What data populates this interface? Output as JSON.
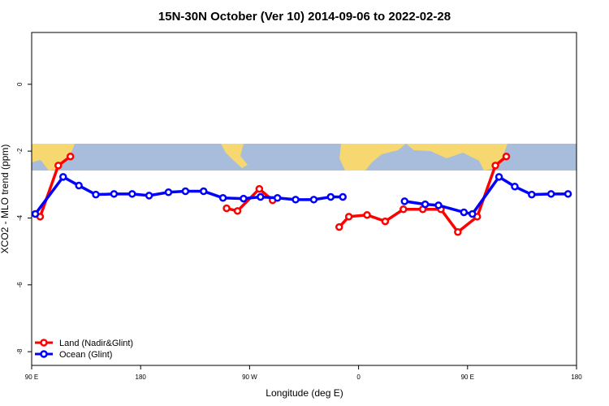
{
  "chart_data": {
    "type": "line",
    "title": "15N-30N October (Ver 10)   2014-09-06 to 2022-02-28",
    "x_label": "Longitude (deg E)",
    "y_label": "XCO2 - MLO trend (ppm)",
    "xlim": [
      90,
      540
    ],
    "xticks": [
      {
        "value": 90,
        "label": "90 E"
      },
      {
        "value": 180,
        "label": "180"
      },
      {
        "value": 270,
        "label": "90 W"
      },
      {
        "value": 360,
        "label": "0"
      },
      {
        "value": 450,
        "label": "90 E"
      },
      {
        "value": 540,
        "label": "180"
      }
    ],
    "ylim": [
      -8.41,
      1.55
    ],
    "yticks": [
      0,
      -2,
      -4,
      -6,
      -8
    ],
    "legend": "bottom-left",
    "series": [
      {
        "name": "Land (Nadir&Glint)",
        "color": "#ff0000",
        "x": [
          97,
          112,
          122,
          186,
          251,
          260,
          278,
          289,
          317,
          344,
          352,
          367,
          382,
          397,
          413,
          428,
          442,
          458,
          473,
          482
        ],
        "values": [
          -3.96,
          -2.43,
          -2.16,
          null,
          -3.71,
          -3.79,
          -3.13,
          -3.47,
          null,
          -4.27,
          -3.96,
          -3.91,
          -4.1,
          -3.74,
          -3.74,
          -3.74,
          -4.42,
          -3.96,
          -2.43,
          -2.16
        ]
      },
      {
        "name": "Ocean (Glint)",
        "color": "#0000ff",
        "x": [
          93,
          116,
          129,
          143,
          158,
          173,
          187,
          203,
          217,
          232,
          248,
          265,
          279,
          293,
          308,
          323,
          337,
          347,
          372,
          398,
          415,
          426,
          447,
          454,
          476,
          489,
          503,
          519,
          533
        ],
        "values": [
          -3.88,
          -2.77,
          -3.03,
          -3.3,
          -3.28,
          -3.28,
          -3.33,
          -3.23,
          -3.2,
          -3.2,
          -3.4,
          -3.42,
          -3.37,
          -3.4,
          -3.45,
          -3.45,
          -3.37,
          -3.37,
          null,
          -3.5,
          -3.59,
          -3.62,
          -3.83,
          -3.88,
          -2.77,
          -3.06,
          -3.3,
          -3.28,
          -3.28
        ]
      }
    ]
  }
}
